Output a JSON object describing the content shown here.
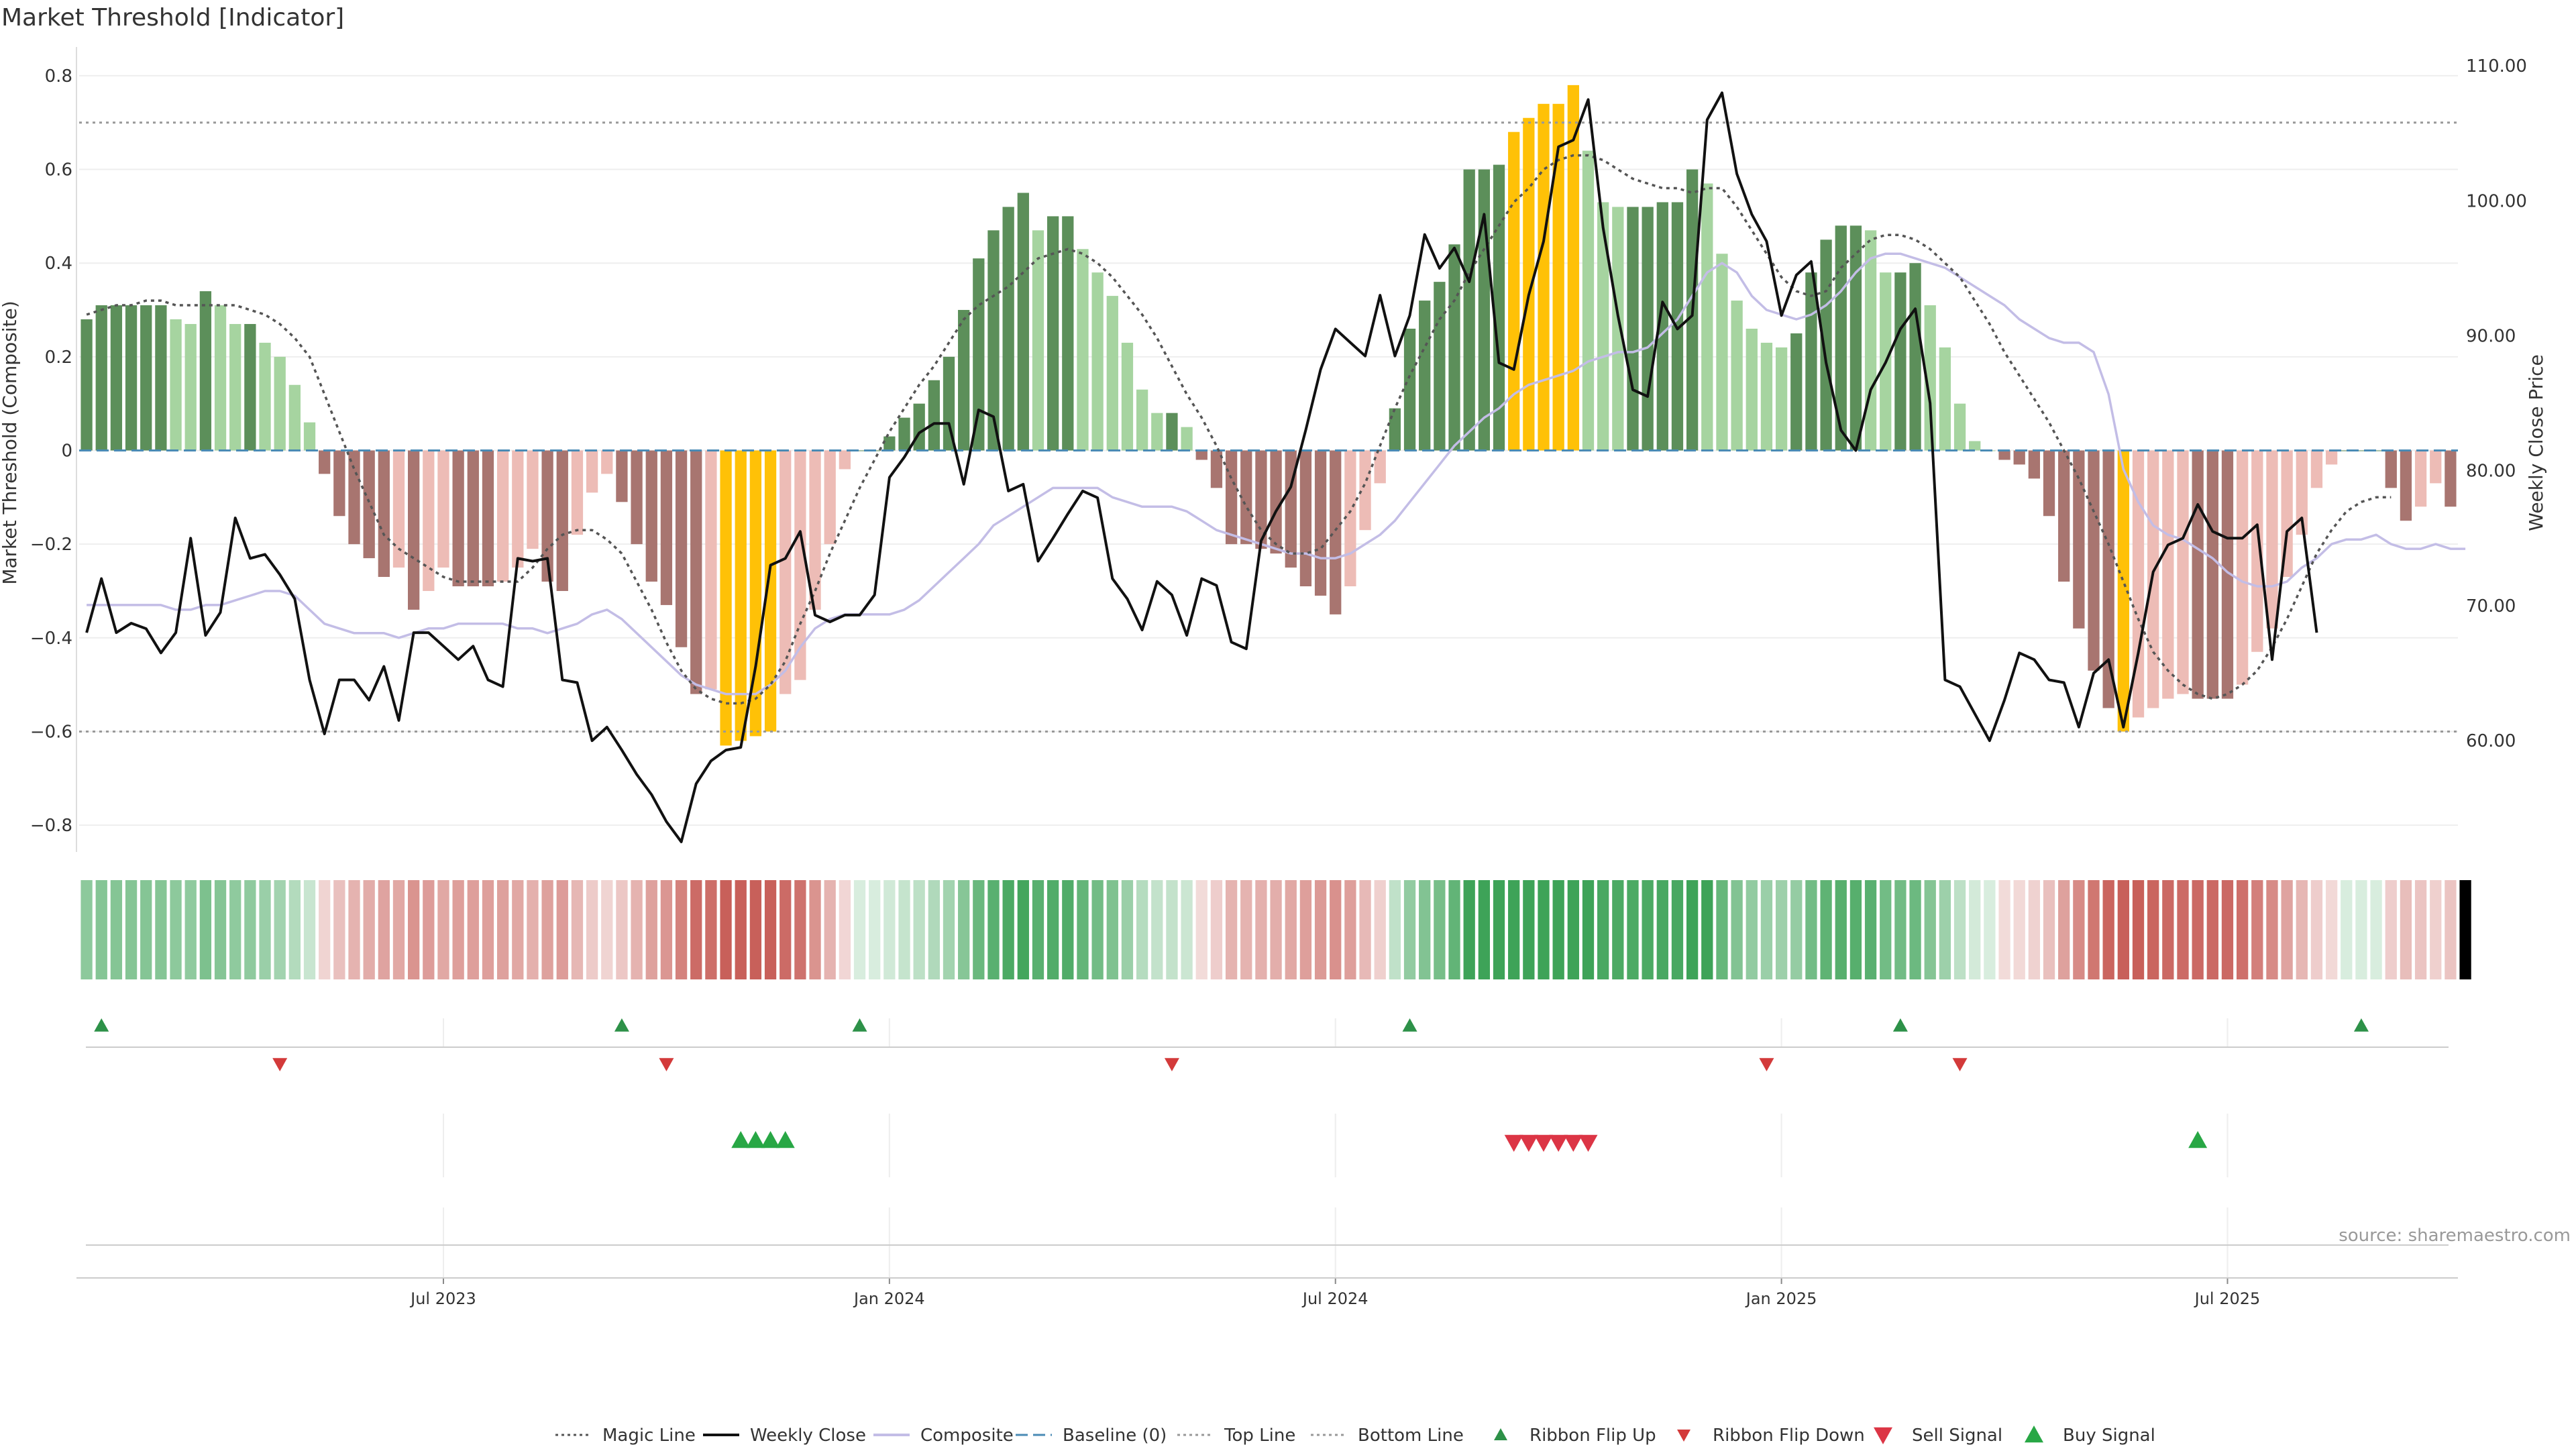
{
  "chart_data": {
    "type": "bar",
    "title": "Market Threshold [Indicator]",
    "ylabel": "Market Threshold (Composite)",
    "y2label": "Weekly Close Price",
    "ylim": [
      -0.85,
      0.85
    ],
    "y2lim": [
      52,
      111
    ],
    "yticks": [
      "0.8",
      "0.6",
      "0.4",
      "0.2",
      "0",
      "−0.2",
      "−0.4",
      "−0.6",
      "−0.8"
    ],
    "yticks_values": [
      0.8,
      0.6,
      0.4,
      0.2,
      0,
      -0.2,
      -0.4,
      -0.6,
      -0.8
    ],
    "y2ticks": [
      "110.00",
      "100.00",
      "90.00",
      "80.00",
      "70.00",
      "60.00"
    ],
    "y2ticks_values": [
      110,
      100,
      90,
      80,
      70,
      60
    ],
    "xticks": [
      "Jul 2023",
      "Jan 2024",
      "Jul 2024",
      "Jan 2025",
      "Jul 2025"
    ],
    "xticks_index": [
      24,
      54,
      84,
      114,
      144
    ],
    "top_line": 0.7,
    "bottom_line": -0.6,
    "composite_values": [
      0.28,
      0.31,
      0.31,
      0.31,
      0.31,
      0.31,
      0.28,
      0.27,
      0.34,
      0.31,
      0.27,
      0.27,
      0.23,
      0.2,
      0.14,
      0.06,
      -0.05,
      -0.14,
      -0.2,
      -0.23,
      -0.27,
      -0.25,
      -0.34,
      -0.3,
      -0.25,
      -0.29,
      -0.29,
      -0.29,
      -0.28,
      -0.25,
      -0.21,
      -0.28,
      -0.3,
      -0.18,
      -0.09,
      -0.05,
      -0.11,
      -0.2,
      -0.28,
      -0.33,
      -0.42,
      -0.52,
      -0.51,
      -0.63,
      -0.62,
      -0.61,
      -0.6,
      -0.52,
      -0.49,
      -0.34,
      -0.2,
      -0.04,
      0.0,
      0.0,
      0.03,
      0.07,
      0.1,
      0.15,
      0.2,
      0.3,
      0.41,
      0.47,
      0.52,
      0.55,
      0.47,
      0.5,
      0.5,
      0.43,
      0.38,
      0.33,
      0.23,
      0.13,
      0.08,
      0.08,
      0.05,
      -0.02,
      -0.08,
      -0.2,
      -0.2,
      -0.21,
      -0.22,
      -0.25,
      -0.29,
      -0.31,
      -0.35,
      -0.29,
      -0.17,
      -0.07,
      0.09,
      0.26,
      0.32,
      0.36,
      0.44,
      0.6,
      0.6,
      0.61,
      0.68,
      0.71,
      0.74,
      0.74,
      0.78,
      0.64,
      0.53,
      0.52,
      0.52,
      0.52,
      0.53,
      0.53,
      0.6,
      0.57,
      0.42,
      0.32,
      0.26,
      0.23,
      0.22,
      0.25,
      0.38,
      0.45,
      0.48,
      0.48,
      0.47,
      0.38,
      0.38,
      0.4,
      0.31,
      0.22,
      0.1,
      0.02,
      0.0,
      -0.02,
      -0.03,
      -0.06,
      -0.14,
      -0.28,
      -0.38,
      -0.47,
      -0.55,
      -0.6,
      -0.57,
      -0.55,
      -0.53,
      -0.52,
      -0.53,
      -0.53,
      -0.53,
      -0.5,
      -0.43,
      -0.38,
      -0.27,
      -0.18,
      -0.08,
      -0.03,
      0.0,
      0.0,
      0.0,
      -0.08,
      -0.15,
      -0.12,
      -0.07,
      -0.12
    ],
    "weekly_close": [
      68,
      72,
      68,
      68.7,
      68.3,
      66.5,
      68,
      75,
      67.8,
      69.5,
      76.5,
      73.5,
      73.8,
      72.3,
      70.5,
      64.5,
      60.5,
      64.5,
      64.5,
      63,
      65.5,
      61.5,
      68,
      68,
      67,
      66,
      67,
      64.5,
      64,
      73.5,
      73.3,
      73.5,
      64.5,
      64.3,
      60,
      61,
      59.3,
      57.5,
      56,
      54,
      52.5,
      56.8,
      58.5,
      59.3,
      59.5,
      65.5,
      73,
      73.5,
      75.5,
      69.3,
      68.8,
      69.3,
      69.3,
      70.8,
      79.5,
      81,
      82.8,
      83.5,
      83.5,
      79,
      84.5,
      84,
      78.5,
      79,
      73.3,
      75,
      76.8,
      78.5,
      78,
      72,
      70.5,
      68.2,
      71.8,
      70.8,
      67.8,
      72,
      71.5,
      67.3,
      66.8,
      74.8,
      77,
      78.8,
      83,
      87.5,
      90.5,
      89.5,
      88.5,
      93,
      88.5,
      91.5,
      97.5,
      95,
      96.5,
      94,
      99,
      88,
      87.5,
      93,
      97,
      104,
      104.5,
      107.5,
      98,
      91.5,
      86,
      85.5,
      92.5,
      90.5,
      91.5,
      106,
      108,
      102,
      99,
      97,
      91.5,
      94.5,
      95.5,
      88,
      83,
      81.5,
      86,
      88,
      90.5,
      92,
      85,
      64.5,
      64,
      62,
      60,
      63,
      66.5,
      66,
      64.5,
      64.3,
      61,
      65,
      66,
      61,
      66.5,
      72.5,
      74.5,
      75,
      77.5,
      75.5,
      75,
      75,
      76,
      66,
      75.5,
      76.5,
      68
    ],
    "composite_line": [
      -0.33,
      -0.33,
      -0.33,
      -0.33,
      -0.33,
      -0.33,
      -0.34,
      -0.34,
      -0.33,
      -0.33,
      -0.32,
      -0.31,
      -0.3,
      -0.3,
      -0.31,
      -0.34,
      -0.37,
      -0.38,
      -0.39,
      -0.39,
      -0.39,
      -0.4,
      -0.39,
      -0.38,
      -0.38,
      -0.37,
      -0.37,
      -0.37,
      -0.37,
      -0.38,
      -0.38,
      -0.39,
      -0.38,
      -0.37,
      -0.35,
      -0.34,
      -0.36,
      -0.39,
      -0.42,
      -0.45,
      -0.48,
      -0.5,
      -0.51,
      -0.52,
      -0.52,
      -0.52,
      -0.5,
      -0.47,
      -0.42,
      -0.38,
      -0.36,
      -0.35,
      -0.35,
      -0.35,
      -0.35,
      -0.34,
      -0.32,
      -0.29,
      -0.26,
      -0.23,
      -0.2,
      -0.16,
      -0.14,
      -0.12,
      -0.1,
      -0.08,
      -0.08,
      -0.08,
      -0.08,
      -0.1,
      -0.11,
      -0.12,
      -0.12,
      -0.12,
      -0.13,
      -0.15,
      -0.17,
      -0.18,
      -0.19,
      -0.2,
      -0.21,
      -0.22,
      -0.22,
      -0.23,
      -0.23,
      -0.22,
      -0.2,
      -0.18,
      -0.15,
      -0.11,
      -0.07,
      -0.03,
      0.01,
      0.04,
      0.07,
      0.09,
      0.12,
      0.14,
      0.15,
      0.16,
      0.17,
      0.19,
      0.2,
      0.21,
      0.21,
      0.22,
      0.25,
      0.28,
      0.33,
      0.38,
      0.4,
      0.38,
      0.33,
      0.3,
      0.29,
      0.28,
      0.29,
      0.31,
      0.34,
      0.38,
      0.41,
      0.42,
      0.42,
      0.41,
      0.4,
      0.39,
      0.37,
      0.35,
      0.33,
      0.31,
      0.28,
      0.26,
      0.24,
      0.23,
      0.23,
      0.21,
      0.12,
      -0.04,
      -0.11,
      -0.16,
      -0.18,
      -0.19,
      -0.21,
      -0.23,
      -0.26,
      -0.28,
      -0.29,
      -0.29,
      -0.28,
      -0.25,
      -0.23,
      -0.2,
      -0.19,
      -0.19,
      -0.18,
      -0.2,
      -0.21,
      -0.21,
      -0.2,
      -0.21,
      -0.21
    ],
    "magic_line": [
      0.29,
      0.3,
      0.31,
      0.31,
      0.32,
      0.32,
      0.31,
      0.31,
      0.31,
      0.31,
      0.31,
      0.3,
      0.29,
      0.27,
      0.24,
      0.2,
      0.12,
      0.04,
      -0.04,
      -0.11,
      -0.18,
      -0.21,
      -0.23,
      -0.25,
      -0.27,
      -0.28,
      -0.28,
      -0.28,
      -0.28,
      -0.28,
      -0.25,
      -0.21,
      -0.18,
      -0.17,
      -0.17,
      -0.19,
      -0.22,
      -0.28,
      -0.34,
      -0.41,
      -0.47,
      -0.51,
      -0.53,
      -0.54,
      -0.54,
      -0.53,
      -0.5,
      -0.45,
      -0.37,
      -0.3,
      -0.22,
      -0.15,
      -0.08,
      -0.02,
      0.04,
      0.09,
      0.14,
      0.18,
      0.23,
      0.28,
      0.31,
      0.33,
      0.35,
      0.38,
      0.41,
      0.42,
      0.43,
      0.42,
      0.4,
      0.37,
      0.33,
      0.29,
      0.24,
      0.18,
      0.12,
      0.07,
      0.01,
      -0.06,
      -0.12,
      -0.17,
      -0.2,
      -0.22,
      -0.22,
      -0.21,
      -0.17,
      -0.13,
      -0.07,
      0.01,
      0.09,
      0.16,
      0.22,
      0.28,
      0.32,
      0.38,
      0.43,
      0.48,
      0.53,
      0.56,
      0.6,
      0.62,
      0.63,
      0.63,
      0.62,
      0.6,
      0.58,
      0.57,
      0.56,
      0.56,
      0.55,
      0.56,
      0.56,
      0.52,
      0.47,
      0.42,
      0.37,
      0.34,
      0.33,
      0.34,
      0.39,
      0.42,
      0.45,
      0.46,
      0.46,
      0.45,
      0.43,
      0.4,
      0.37,
      0.32,
      0.27,
      0.21,
      0.16,
      0.11,
      0.06,
      0.0,
      -0.06,
      -0.13,
      -0.2,
      -0.28,
      -0.36,
      -0.43,
      -0.47,
      -0.5,
      -0.52,
      -0.53,
      -0.52,
      -0.5,
      -0.47,
      -0.42,
      -0.36,
      -0.29,
      -0.22,
      -0.17,
      -0.13,
      -0.11,
      -0.1,
      -0.1
    ],
    "bar_colors": {
      "strong_pos": "#5c8f5a",
      "weak_pos": "#a6d4a0",
      "strong_neg": "#a87570",
      "weak_neg": "#edbcb6",
      "extreme": "#ffc107"
    },
    "strip_colors": {
      "green": "#3ea358",
      "red": "#c8605a"
    },
    "ribbon_flip_up_index": [
      1,
      36,
      52,
      89,
      122,
      153
    ],
    "ribbon_flip_down_index": [
      13,
      39,
      73,
      113,
      126
    ],
    "buy_signal_index": [
      44,
      45,
      46,
      47,
      142
    ],
    "sell_signal_index": [
      96,
      97,
      98,
      99,
      100,
      101
    ],
    "series": [
      {
        "name": "Magic Line",
        "color": "#555555",
        "style": "dotted-line"
      },
      {
        "name": "Weekly Close",
        "color": "#111111",
        "style": "line"
      },
      {
        "name": "Composite",
        "color": "#c3bde6",
        "style": "line"
      },
      {
        "name": "Baseline (0)",
        "color": "#4a8bb5",
        "style": "dashed-line"
      },
      {
        "name": "Top Line",
        "color": "#999999",
        "style": "dotted-line"
      },
      {
        "name": "Bottom Line",
        "color": "#999999",
        "style": "dotted-line"
      },
      {
        "name": "Ribbon Flip Up",
        "color": "#2d9148",
        "style": "up-marker"
      },
      {
        "name": "Ribbon Flip Down",
        "color": "#d33a3a",
        "style": "down-marker"
      },
      {
        "name": "Sell Signal",
        "color": "#dc3545",
        "style": "big-down-marker"
      },
      {
        "name": "Buy Signal",
        "color": "#28a745",
        "style": "big-up-marker"
      }
    ],
    "legend_position": "bottom-center",
    "source": "source: sharemaestro.com"
  }
}
